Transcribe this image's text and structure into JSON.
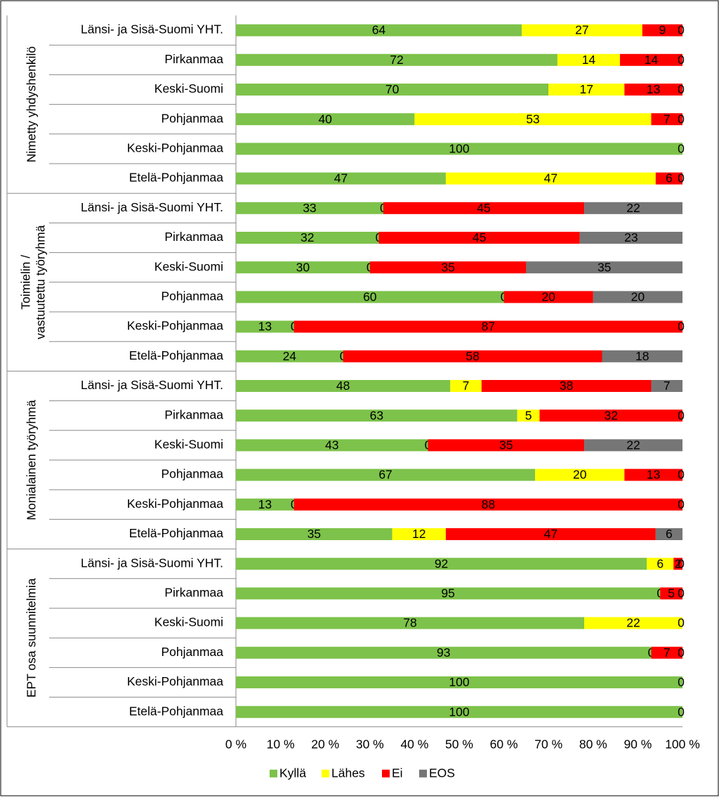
{
  "chart_data": {
    "type": "bar",
    "orientation": "horizontal",
    "stacked": "percent",
    "groups": [
      {
        "label": "Nimetty yhdyshenkilö",
        "rows": [
          {
            "label": "Länsi- ja Sisä-Suomi YHT.",
            "values": [
              64,
              27,
              9,
              0
            ],
            "labels": [
              "64",
              "27",
              "9",
              "0"
            ]
          },
          {
            "label": "Pirkanmaa",
            "values": [
              72,
              14,
              14,
              0
            ],
            "labels": [
              "72",
              "14",
              "14",
              "0"
            ]
          },
          {
            "label": "Keski-Suomi",
            "values": [
              70,
              17,
              13,
              0
            ],
            "labels": [
              "70",
              "17",
              "13",
              "0"
            ]
          },
          {
            "label": "Pohjanmaa",
            "values": [
              40,
              53,
              7,
              0
            ],
            "labels": [
              "40",
              "53",
              "7",
              "0"
            ]
          },
          {
            "label": "Keski-Pohjanmaa",
            "values": [
              100,
              0,
              0,
              0
            ],
            "labels": [
              "100",
              "",
              "",
              "0"
            ]
          },
          {
            "label": "Etelä-Pohjanmaa",
            "values": [
              47,
              47,
              6,
              0
            ],
            "labels": [
              "47",
              "47",
              "6",
              "0"
            ]
          }
        ]
      },
      {
        "label": "Toimielin / vastuutettu työryhmä",
        "rows": [
          {
            "label": "Länsi- ja Sisä-Suomi YHT.",
            "values": [
              33,
              0,
              45,
              22
            ],
            "labels": [
              "33",
              "0",
              "45",
              "22"
            ]
          },
          {
            "label": "Pirkanmaa",
            "values": [
              32,
              0,
              45,
              23
            ],
            "labels": [
              "32",
              "0",
              "45",
              "23"
            ]
          },
          {
            "label": "Keski-Suomi",
            "values": [
              30,
              0,
              35,
              35
            ],
            "labels": [
              "30",
              "0",
              "35",
              "35"
            ]
          },
          {
            "label": "Pohjanmaa",
            "values": [
              60,
              0,
              20,
              20
            ],
            "labels": [
              "60",
              "0",
              "20",
              "20"
            ]
          },
          {
            "label": "Keski-Pohjanmaa",
            "values": [
              13,
              0,
              87,
              0
            ],
            "labels": [
              "13",
              "0",
              "87",
              "0"
            ]
          },
          {
            "label": "Etelä-Pohjanmaa",
            "values": [
              24,
              0,
              58,
              18
            ],
            "labels": [
              "24",
              "0",
              "58",
              "18"
            ]
          }
        ]
      },
      {
        "label": "Monialainen työryhmä",
        "rows": [
          {
            "label": "Länsi- ja Sisä-Suomi YHT.",
            "values": [
              48,
              7,
              38,
              7
            ],
            "labels": [
              "48",
              "7",
              "38",
              "7"
            ]
          },
          {
            "label": "Pirkanmaa",
            "values": [
              63,
              5,
              32,
              0
            ],
            "labels": [
              "63",
              "5",
              "32",
              "0"
            ]
          },
          {
            "label": "Keski-Suomi",
            "values": [
              43,
              0,
              35,
              22
            ],
            "labels": [
              "43",
              "0",
              "35",
              "22"
            ]
          },
          {
            "label": "Pohjanmaa",
            "values": [
              67,
              20,
              13,
              0
            ],
            "labels": [
              "67",
              "20",
              "13",
              "0"
            ]
          },
          {
            "label": "Keski-Pohjanmaa",
            "values": [
              13,
              0,
              88,
              0
            ],
            "labels": [
              "13",
              "0",
              "88",
              "0"
            ]
          },
          {
            "label": "Etelä-Pohjanmaa",
            "values": [
              35,
              12,
              47,
              6
            ],
            "labels": [
              "35",
              "12",
              "47",
              "6"
            ]
          }
        ]
      },
      {
        "label": "EPT osa suunnitelmia",
        "rows": [
          {
            "label": "Länsi- ja Sisä-Suomi YHT.",
            "values": [
              92,
              6,
              2,
              0
            ],
            "labels": [
              "92",
              "6",
              "2",
              "0"
            ]
          },
          {
            "label": "Pirkanmaa",
            "values": [
              95,
              0,
              5,
              0
            ],
            "labels": [
              "95",
              "0",
              "5",
              "0"
            ]
          },
          {
            "label": "Keski-Suomi",
            "values": [
              78,
              22,
              0,
              0
            ],
            "labels": [
              "78",
              "22",
              "",
              "0"
            ]
          },
          {
            "label": "Pohjanmaa",
            "values": [
              93,
              0,
              7,
              0
            ],
            "labels": [
              "93",
              "0",
              "7",
              "0"
            ]
          },
          {
            "label": "Keski-Pohjanmaa",
            "values": [
              100,
              0,
              0,
              0
            ],
            "labels": [
              "100",
              "",
              "",
              "0"
            ]
          },
          {
            "label": "Etelä-Pohjanmaa",
            "values": [
              100,
              0,
              0,
              0
            ],
            "labels": [
              "100",
              "",
              "",
              "0"
            ]
          }
        ]
      }
    ],
    "series": [
      {
        "name": "Kyllä",
        "color": "#7dc24a"
      },
      {
        "name": "Lähes",
        "color": "#ffff00"
      },
      {
        "name": "Ei",
        "color": "#ff0000"
      },
      {
        "name": "EOS",
        "color": "#767676"
      }
    ],
    "x_ticks": [
      "0 %",
      "10 %",
      "20 %",
      "30 %",
      "40 %",
      "50 %",
      "60 %",
      "70 %",
      "80 %",
      "90 %",
      "100 %"
    ],
    "xlim": [
      0,
      100
    ],
    "grid": false,
    "legend_position": "bottom"
  }
}
